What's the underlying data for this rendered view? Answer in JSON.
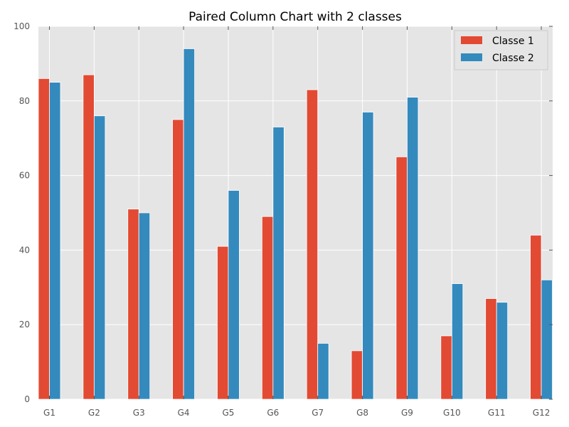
{
  "chart_data": {
    "type": "bar",
    "title": "Paired Column Chart with 2 classes",
    "xlabel": "",
    "ylabel": "",
    "categories": [
      "G1",
      "G2",
      "G3",
      "G4",
      "G5",
      "G6",
      "G7",
      "G8",
      "G9",
      "G10",
      "G11",
      "G12"
    ],
    "series": [
      {
        "name": "Classe 1",
        "color": "#E24A33",
        "values": [
          86,
          87,
          51,
          75,
          41,
          49,
          83,
          13,
          65,
          17,
          27,
          44
        ]
      },
      {
        "name": "Classe 2",
        "color": "#348ABD",
        "values": [
          85,
          76,
          50,
          94,
          56,
          73,
          15,
          77,
          81,
          31,
          26,
          32
        ]
      }
    ],
    "ylim": [
      0,
      100
    ],
    "yticks": [
      0,
      20,
      40,
      60,
      80,
      100
    ],
    "grid": true,
    "legend_position": "top-right",
    "background": "#E5E5E5"
  }
}
